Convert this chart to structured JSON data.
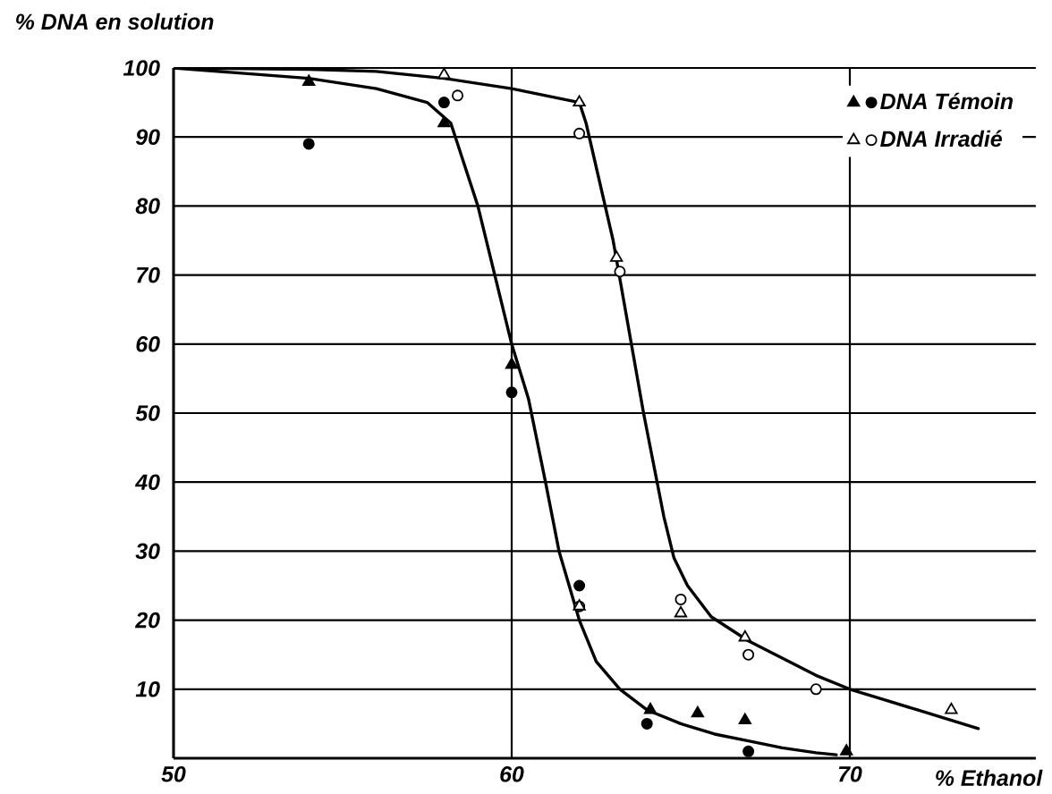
{
  "chart_data": {
    "type": "scatter",
    "xlabel": "% Ethanol",
    "ylabel": "% DNA en solution",
    "xlim": [
      50,
      75.5
    ],
    "ylim": [
      0,
      100
    ],
    "xticks": [
      50,
      60,
      70
    ],
    "yticks": [
      10,
      20,
      30,
      40,
      50,
      60,
      70,
      80,
      90,
      100
    ],
    "grid": true,
    "legend": "top right",
    "series": [
      {
        "type": "line",
        "marker": "none",
        "color": "#000000",
        "x": [
          50,
          54,
          56,
          57.5,
          58.2,
          59,
          60,
          60.5,
          61,
          61.4,
          62,
          62.5,
          63.2,
          64,
          65,
          66,
          67,
          68,
          69,
          69.6
        ],
        "values": [
          100,
          98.5,
          97,
          95,
          92,
          80,
          60,
          52,
          40,
          30,
          20,
          14,
          10,
          7,
          5,
          3.5,
          2.5,
          1.5,
          0.8,
          0.5
        ]
      },
      {
        "type": "line",
        "marker": "none",
        "color": "#000000",
        "x": [
          50,
          54,
          56,
          58,
          60,
          61,
          62,
          62.2,
          63,
          63.9,
          64.5,
          64.8,
          65.2,
          65.9,
          67,
          68,
          69,
          70,
          71,
          72,
          73.8
        ],
        "values": [
          100,
          99.8,
          99.5,
          98.5,
          97,
          96,
          95,
          92,
          75,
          50,
          35,
          29,
          25,
          20.5,
          17,
          14.5,
          12,
          10,
          8.5,
          7,
          4.3
        ]
      },
      {
        "name": "DNA Témoin",
        "marker": "circle",
        "color": "#000000",
        "x": [
          54,
          58,
          60,
          62,
          64,
          67
        ],
        "values": [
          89,
          95,
          53,
          25,
          5,
          1
        ]
      },
      {
        "marker": "triangle",
        "color": "#000000",
        "x": [
          54,
          58,
          60,
          64.1,
          65.5,
          66.9,
          69.9
        ],
        "values": [
          98,
          92,
          57,
          7,
          6.5,
          5.5,
          1
        ]
      },
      {
        "name": "DNA Irradié",
        "marker": "circle",
        "color": "#ffffff",
        "x": [
          58.4,
          62,
          63.2,
          62,
          65,
          67,
          69
        ],
        "values": [
          96,
          90.5,
          70.5,
          22,
          23,
          15,
          10
        ]
      },
      {
        "marker": "triangle",
        "color": "#ffffff",
        "x": [
          58,
          62,
          63.1,
          62,
          65,
          66.9,
          73
        ],
        "values": [
          99,
          95,
          72.5,
          22,
          21,
          17.5,
          7
        ]
      }
    ]
  }
}
